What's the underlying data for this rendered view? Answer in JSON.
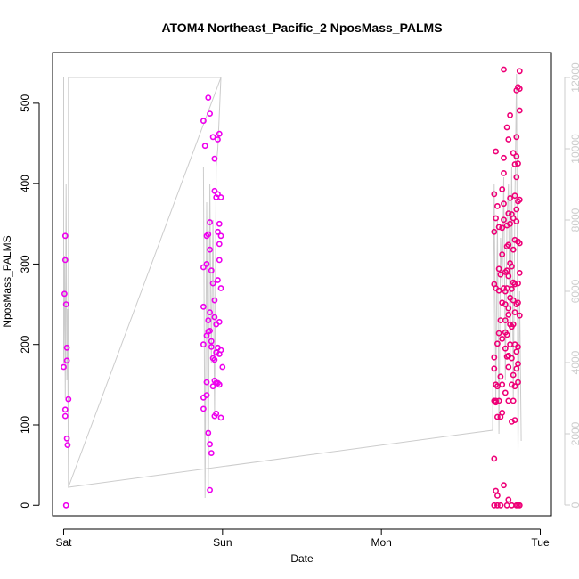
{
  "chart_data": {
    "type": "scatter",
    "title": "ATOM4 Northeast_Pacific_2 NposMass_PALMS",
    "xlabel": "Date",
    "ylabel": "NposMass_PALMS",
    "x_ticks": [
      {
        "label": "Sat",
        "day": 0
      },
      {
        "label": "Sun",
        "day": 1
      },
      {
        "label": "Mon",
        "day": 2
      },
      {
        "label": "Tue",
        "day": 3
      }
    ],
    "y_ticks": [
      0,
      100,
      200,
      300,
      400,
      500
    ],
    "y_right_ticks": [
      0,
      2000,
      4000,
      6000,
      8000,
      10000,
      12000
    ],
    "xlim": [
      -0.07,
      3.07
    ],
    "ylim": [
      -13,
      563
    ],
    "y_right_lim": [
      -300,
      12700
    ],
    "colors": {
      "points_early": "#ee00ee",
      "points_late": "#ee0077",
      "secondary_line": "#cccccc",
      "frame": "#000000"
    },
    "series": [
      {
        "kind": "points",
        "points": [
          [
            0.01,
            335
          ],
          [
            0.01,
            305
          ],
          [
            0.0,
            172
          ],
          [
            0.01,
            119
          ],
          [
            0.01,
            111
          ],
          [
            0.005,
            263
          ],
          [
            0.015,
            0
          ],
          [
            0.015,
            250
          ],
          [
            0.02,
            196
          ],
          [
            0.02,
            180
          ],
          [
            0.02,
            83
          ],
          [
            0.025,
            75
          ],
          [
            0.03,
            132
          ],
          [
            0.88,
            478
          ],
          [
            0.89,
            447
          ],
          [
            0.88,
            296
          ],
          [
            0.9,
            300
          ],
          [
            0.88,
            247
          ],
          [
            0.9,
            211
          ],
          [
            0.88,
            200
          ],
          [
            0.9,
            153
          ],
          [
            0.88,
            134
          ],
          [
            0.88,
            120
          ],
          [
            0.9,
            137
          ],
          [
            0.91,
            507
          ],
          [
            0.92,
            487
          ],
          [
            0.9,
            335
          ],
          [
            0.91,
            337
          ],
          [
            0.92,
            352
          ],
          [
            0.92,
            318
          ],
          [
            0.93,
            292
          ],
          [
            0.91,
            230
          ],
          [
            0.91,
            216
          ],
          [
            0.92,
            217
          ],
          [
            0.93,
            204
          ],
          [
            0.92,
            240
          ],
          [
            0.91,
            90
          ],
          [
            0.92,
            76
          ],
          [
            0.93,
            65
          ],
          [
            0.92,
            19
          ],
          [
            0.94,
            458
          ],
          [
            0.95,
            431
          ],
          [
            0.95,
            391
          ],
          [
            0.96,
            383
          ],
          [
            0.94,
            276
          ],
          [
            0.95,
            255
          ],
          [
            0.95,
            234
          ],
          [
            0.93,
            197
          ],
          [
            0.94,
            183
          ],
          [
            0.95,
            181
          ],
          [
            0.96,
            190
          ],
          [
            0.95,
            155
          ],
          [
            0.96,
            152
          ],
          [
            0.94,
            148
          ],
          [
            0.96,
            114
          ],
          [
            0.95,
            111
          ],
          [
            0.97,
            455
          ],
          [
            0.98,
            462
          ],
          [
            0.97,
            387
          ],
          [
            0.99,
            383
          ],
          [
            0.98,
            350
          ],
          [
            0.97,
            340
          ],
          [
            0.99,
            335
          ],
          [
            0.98,
            325
          ],
          [
            0.98,
            305
          ],
          [
            0.97,
            280
          ],
          [
            0.99,
            270
          ],
          [
            0.98,
            228
          ],
          [
            0.97,
            196
          ],
          [
            0.99,
            193
          ],
          [
            0.98,
            150
          ],
          [
            0.97,
            152
          ],
          [
            0.99,
            109
          ],
          [
            0.96,
            225
          ],
          [
            0.98,
            188
          ],
          [
            1.0,
            172
          ]
        ]
      },
      {
        "kind": "points",
        "points": [
          [
            2.72,
            440
          ],
          [
            2.71,
            387
          ],
          [
            2.72,
            357
          ],
          [
            2.71,
            340
          ],
          [
            2.71,
            275
          ],
          [
            2.72,
            270
          ],
          [
            2.71,
            184
          ],
          [
            2.71,
            170
          ],
          [
            2.72,
            150
          ],
          [
            2.71,
            130
          ],
          [
            2.72,
            128
          ],
          [
            2.71,
            58
          ],
          [
            2.71,
            0
          ],
          [
            2.73,
            372
          ],
          [
            2.73,
            201
          ],
          [
            2.73,
            148
          ],
          [
            2.72,
            130
          ],
          [
            2.73,
            110
          ],
          [
            2.72,
            18
          ],
          [
            2.73,
            12
          ],
          [
            2.73,
            0
          ],
          [
            2.74,
            346
          ],
          [
            2.74,
            294
          ],
          [
            2.74,
            267
          ],
          [
            2.75,
            287
          ],
          [
            2.75,
            230
          ],
          [
            2.74,
            214
          ],
          [
            2.75,
            160
          ],
          [
            2.74,
            130
          ],
          [
            2.75,
            110
          ],
          [
            2.76,
            393
          ],
          [
            2.76,
            345
          ],
          [
            2.75,
            0
          ],
          [
            2.77,
            542
          ],
          [
            2.77,
            432
          ],
          [
            2.77,
            413
          ],
          [
            2.77,
            375
          ],
          [
            2.77,
            355
          ],
          [
            2.76,
            312
          ],
          [
            2.77,
            270
          ],
          [
            2.76,
            252
          ],
          [
            2.76,
            207
          ],
          [
            2.76,
            150
          ],
          [
            2.76,
            115
          ],
          [
            2.78,
            290
          ],
          [
            2.78,
            266
          ],
          [
            2.78,
            250
          ],
          [
            2.78,
            230
          ],
          [
            2.78,
            215
          ],
          [
            2.78,
            195
          ],
          [
            2.78,
            140
          ],
          [
            2.77,
            25
          ],
          [
            2.79,
            470
          ],
          [
            2.79,
            348
          ],
          [
            2.79,
            322
          ],
          [
            2.79,
            292
          ],
          [
            2.79,
            270
          ],
          [
            2.79,
            212
          ],
          [
            2.79,
            185
          ],
          [
            2.8,
            455
          ],
          [
            2.8,
            363
          ],
          [
            2.8,
            324
          ],
          [
            2.8,
            285
          ],
          [
            2.8,
            245
          ],
          [
            2.8,
            237
          ],
          [
            2.8,
            186
          ],
          [
            2.8,
            130
          ],
          [
            2.81,
            485
          ],
          [
            2.81,
            382
          ],
          [
            2.81,
            350
          ],
          [
            2.81,
            301
          ],
          [
            2.81,
            258
          ],
          [
            2.81,
            225
          ],
          [
            2.81,
            200
          ],
          [
            2.79,
            0
          ],
          [
            2.8,
            7
          ],
          [
            2.82,
            362
          ],
          [
            2.82,
            297
          ],
          [
            2.82,
            269
          ],
          [
            2.82,
            222
          ],
          [
            2.82,
            183
          ],
          [
            2.82,
            150
          ],
          [
            2.82,
            104
          ],
          [
            2.83,
            438
          ],
          [
            2.83,
            357
          ],
          [
            2.83,
            318
          ],
          [
            2.83,
            277
          ],
          [
            2.83,
            255
          ],
          [
            2.83,
            225
          ],
          [
            2.83,
            162
          ],
          [
            2.83,
            130
          ],
          [
            2.84,
            424
          ],
          [
            2.84,
            385
          ],
          [
            2.84,
            330
          ],
          [
            2.84,
            275
          ],
          [
            2.84,
            240
          ],
          [
            2.84,
            200
          ],
          [
            2.84,
            148
          ],
          [
            2.84,
            106
          ],
          [
            2.85,
            516
          ],
          [
            2.85,
            458
          ],
          [
            2.85,
            434
          ],
          [
            2.85,
            408
          ],
          [
            2.85,
            368
          ],
          [
            2.85,
            353
          ],
          [
            2.85,
            250
          ],
          [
            2.85,
            191
          ],
          [
            2.85,
            170
          ],
          [
            2.86,
            520
          ],
          [
            2.86,
            425
          ],
          [
            2.86,
            378
          ],
          [
            2.86,
            328
          ],
          [
            2.86,
            276
          ],
          [
            2.86,
            252
          ],
          [
            2.86,
            197
          ],
          [
            2.86,
            176
          ],
          [
            2.86,
            153
          ],
          [
            2.87,
            540
          ],
          [
            2.87,
            491
          ],
          [
            2.87,
            518
          ],
          [
            2.87,
            380
          ],
          [
            2.87,
            326
          ],
          [
            2.87,
            289
          ],
          [
            2.87,
            236
          ],
          [
            2.86,
            0
          ],
          [
            2.87,
            0
          ],
          [
            2.8,
            172
          ],
          [
            2.82,
            0
          ],
          [
            2.85,
            0
          ]
        ]
      },
      {
        "kind": "line",
        "axis": "right",
        "points": [
          [
            0.0,
            12000
          ],
          [
            0.0,
            4000
          ],
          [
            0.005,
            7000
          ],
          [
            0.01,
            3000
          ],
          [
            0.015,
            9000
          ],
          [
            0.02,
            3500
          ],
          [
            0.025,
            5500
          ],
          [
            0.03,
            500
          ],
          [
            0.03,
            12000
          ],
          [
            0.99,
            12000
          ],
          [
            0.03,
            500
          ],
          [
            2.7,
            2100
          ],
          [
            2.71,
            9000
          ],
          [
            2.72,
            3000
          ],
          [
            2.73,
            8000
          ],
          [
            2.74,
            2000
          ],
          [
            2.75,
            7500
          ],
          [
            2.76,
            6000
          ],
          [
            2.77,
            9200
          ],
          [
            2.78,
            3500
          ],
          [
            2.79,
            8000
          ],
          [
            2.8,
            9000
          ],
          [
            2.81,
            4000
          ],
          [
            2.82,
            9500
          ],
          [
            2.83,
            3000
          ],
          [
            2.84,
            8500
          ],
          [
            2.85,
            12100
          ],
          [
            2.86,
            1500
          ],
          [
            2.87,
            6000
          ],
          [
            2.88,
            1800
          ]
        ]
      },
      {
        "kind": "line",
        "axis": "right",
        "points": [
          [
            0.88,
            9500
          ],
          [
            0.89,
            200
          ],
          [
            0.9,
            8500
          ],
          [
            0.91,
            300
          ],
          [
            0.92,
            9000
          ],
          [
            0.93,
            4000
          ],
          [
            0.94,
            8000
          ],
          [
            0.95,
            2500
          ],
          [
            0.96,
            9500
          ],
          [
            0.97,
            10000
          ],
          [
            0.98,
            11000
          ],
          [
            0.99,
            12000
          ]
        ]
      }
    ]
  }
}
